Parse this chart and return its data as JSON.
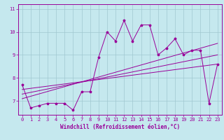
{
  "xlabel": "Windchill (Refroidissement éolien,°C)",
  "background_color": "#c5e8ee",
  "grid_color": "#a0c8d0",
  "line_color": "#990099",
  "x_data": [
    0,
    1,
    2,
    3,
    4,
    5,
    6,
    7,
    8,
    9,
    10,
    11,
    12,
    13,
    14,
    15,
    16,
    17,
    18,
    19,
    20,
    21,
    22,
    23
  ],
  "y_data": [
    7.7,
    6.7,
    6.8,
    6.9,
    6.9,
    6.9,
    6.6,
    7.4,
    7.4,
    8.9,
    10.0,
    9.6,
    10.5,
    9.6,
    10.3,
    10.3,
    9.0,
    9.3,
    9.7,
    9.0,
    9.2,
    9.2,
    6.9,
    8.6
  ],
  "reg_lines": [
    {
      "x0": 0,
      "y0": 7.1,
      "x1": 23,
      "y1": 9.5
    },
    {
      "x0": 0,
      "y0": 7.3,
      "x1": 23,
      "y1": 9.0
    },
    {
      "x0": 0,
      "y0": 7.5,
      "x1": 23,
      "y1": 8.6
    }
  ],
  "xlim": [
    -0.5,
    23.5
  ],
  "ylim": [
    6.4,
    11.2
  ],
  "xticks": [
    0,
    1,
    2,
    3,
    4,
    5,
    6,
    7,
    8,
    9,
    10,
    11,
    12,
    13,
    14,
    15,
    16,
    17,
    18,
    19,
    20,
    21,
    22,
    23
  ],
  "yticks": [
    7,
    8,
    9,
    10,
    11
  ],
  "label_fontsize": 5.5,
  "tick_fontsize": 5.0
}
